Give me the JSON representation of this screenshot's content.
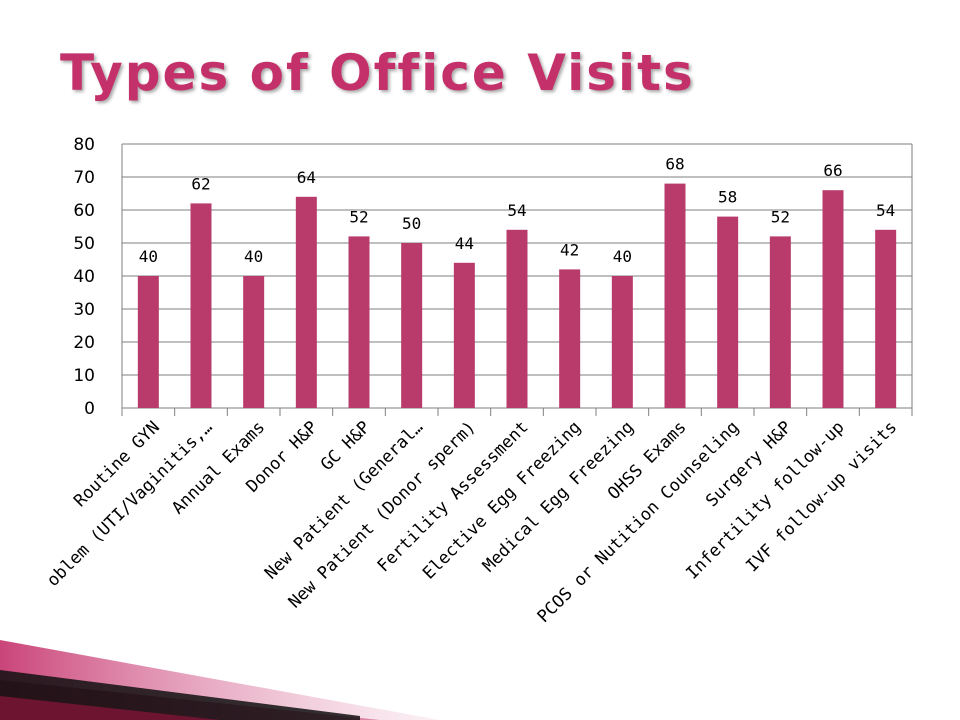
{
  "slide": {
    "title": "Types of Office Visits"
  },
  "colors": {
    "title": "#c4306a",
    "bar": "#b83b6c",
    "grid": "#7f7f7f"
  },
  "chart_data": {
    "type": "bar",
    "title": "",
    "xlabel": "",
    "ylabel": "",
    "ylim": [
      0,
      80
    ],
    "yticks": [
      0,
      10,
      20,
      30,
      40,
      50,
      60,
      70,
      80
    ],
    "grid": true,
    "categories": [
      "Routine GYN",
      "oblem (UTI/Vaginitis,…",
      "Annual Exams",
      "Donor H&P",
      "GC H&P",
      "New Patient (General…",
      "New Patient (Donor sperm)",
      "Fertility Assessment",
      "Elective Egg Freezing",
      "Medical Egg Freezing",
      "OHSS Exams",
      "PCOS or Nutition Counseling",
      "Surgery H&P",
      "Infertility follow-up",
      "IVF follow-up visits"
    ],
    "values": [
      40,
      62,
      40,
      64,
      52,
      50,
      44,
      54,
      42,
      40,
      68,
      58,
      52,
      66,
      54
    ]
  }
}
